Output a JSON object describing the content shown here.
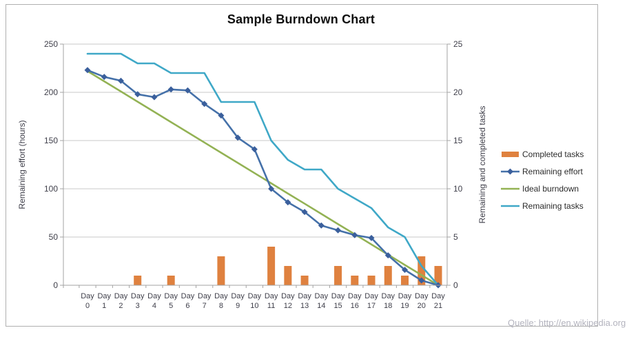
{
  "title": "Sample Burndown Chart",
  "source_note": "Quelle: http://en.wikipedia.org",
  "colors": {
    "completed_tasks": "#DF813F",
    "remaining_effort": "#4571A9",
    "remaining_effort_marker": "#3A5F9C",
    "ideal_burndown": "#93B254",
    "remaining_tasks": "#3FA8C7",
    "gridline": "#C9C9C9",
    "axis_line": "#A3A3A3",
    "tick_text": "#3E3E49",
    "frame_border": "#B0B0B0"
  },
  "chart_data": {
    "type": "combo-bar-line",
    "title": "Sample Burndown Chart",
    "grid": true,
    "legend_position": "right",
    "categories": [
      "Day 0",
      "Day 1",
      "Day 2",
      "Day 3",
      "Day 4",
      "Day 5",
      "Day 6",
      "Day 7",
      "Day 8",
      "Day 9",
      "Day 10",
      "Day 11",
      "Day 12",
      "Day 13",
      "Day 14",
      "Day 15",
      "Day 16",
      "Day 17",
      "Day 18",
      "Day 19",
      "Day 20",
      "Day 21"
    ],
    "left_axis": {
      "title": "Remaining effort (hours)",
      "min": 0,
      "max": 250,
      "step": 50,
      "ticks": [
        0,
        50,
        100,
        150,
        200,
        250
      ]
    },
    "right_axis": {
      "title": "Remaining and completed tasks",
      "min": 0,
      "max": 25,
      "step": 5,
      "ticks": [
        0,
        5,
        10,
        15,
        20,
        25
      ]
    },
    "series": [
      {
        "name": "Completed tasks",
        "type": "bar",
        "axis": "right",
        "color": "#DF813F",
        "values": [
          0,
          0,
          0,
          1,
          0,
          1,
          0,
          0,
          3,
          0,
          0,
          4,
          2,
          1,
          0,
          2,
          1,
          1,
          2,
          1,
          3,
          2
        ]
      },
      {
        "name": "Remaining effort",
        "type": "line",
        "axis": "left",
        "marker": "diamond",
        "color": "#4571A9",
        "marker_color": "#3A5F9C",
        "values": [
          223,
          216,
          212,
          198,
          195,
          203,
          202,
          188,
          176,
          153,
          141,
          100,
          86,
          76,
          62,
          57,
          52,
          49,
          31,
          16,
          5,
          0
        ]
      },
      {
        "name": "Ideal burndown",
        "type": "line",
        "axis": "left",
        "color": "#93B254",
        "values": [
          222,
          211.4,
          200.9,
          190.3,
          179.7,
          169.1,
          158.6,
          148,
          137.4,
          126.9,
          116.3,
          105.7,
          95.1,
          84.6,
          74,
          63.4,
          52.9,
          42.3,
          31.7,
          21.1,
          10.6,
          0
        ]
      },
      {
        "name": "Remaining tasks",
        "type": "line",
        "axis": "right",
        "color": "#3FA8C7",
        "values": [
          24,
          24,
          24,
          23,
          23,
          22,
          22,
          22,
          19,
          19,
          19,
          15,
          13,
          12,
          12,
          10,
          9,
          8,
          6,
          5,
          2,
          0
        ]
      }
    ]
  }
}
